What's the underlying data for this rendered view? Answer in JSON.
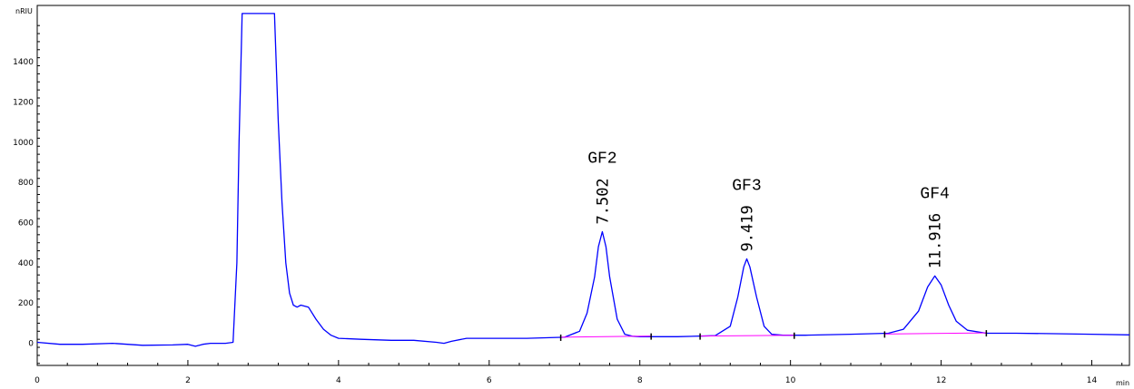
{
  "chart_data": {
    "type": "line",
    "title": "",
    "xlabel": "min",
    "ylabel": "nRIU",
    "xlim": [
      0,
      14.5
    ],
    "ylim": [
      -110,
      1680
    ],
    "x_ticks": [
      0,
      2,
      4,
      6,
      8,
      10,
      12,
      14
    ],
    "y_ticks": [
      0,
      200,
      400,
      600,
      800,
      1000,
      1200,
      1400
    ],
    "series": [
      {
        "color": "#0000ff",
        "x": [
          0,
          0.3,
          0.6,
          1.0,
          1.4,
          1.8,
          2.0,
          2.1,
          2.2,
          2.3,
          2.5,
          2.6,
          2.65,
          2.68,
          2.72,
          2.8,
          2.9,
          3.0,
          3.05,
          3.1,
          3.15,
          3.2,
          3.25,
          3.3,
          3.35,
          3.4,
          3.45,
          3.5,
          3.6,
          3.7,
          3.8,
          3.9,
          4.0,
          4.3,
          4.7,
          5.0,
          5.3,
          5.4,
          5.5,
          5.7,
          6.0,
          6.5,
          7.0,
          7.2,
          7.3,
          7.4,
          7.45,
          7.502,
          7.55,
          7.6,
          7.7,
          7.8,
          7.9,
          8.0,
          8.5,
          9.0,
          9.2,
          9.3,
          9.38,
          9.419,
          9.46,
          9.55,
          9.65,
          9.75,
          9.9,
          10.2,
          10.8,
          11.3,
          11.5,
          11.7,
          11.82,
          11.916,
          12.0,
          12.1,
          12.2,
          12.35,
          12.6,
          13.0,
          13.5,
          14.0,
          14.5
        ],
        "values": [
          5,
          -5,
          -5,
          0,
          -10,
          -8,
          -5,
          -15,
          -5,
          0,
          0,
          5,
          400,
          1000,
          1640,
          1640,
          1640,
          1640,
          1640,
          1640,
          1640,
          1100,
          700,
          400,
          250,
          190,
          180,
          190,
          180,
          120,
          70,
          40,
          25,
          20,
          15,
          15,
          5,
          0,
          10,
          25,
          25,
          25,
          30,
          60,
          150,
          330,
          480,
          555,
          480,
          330,
          120,
          45,
          35,
          33,
          33,
          38,
          85,
          230,
          380,
          420,
          380,
          230,
          85,
          45,
          40,
          40,
          45,
          50,
          70,
          160,
          280,
          335,
          290,
          190,
          110,
          65,
          50,
          50,
          48,
          45,
          42
        ]
      },
      {
        "color": "#ff00ff",
        "x": [
          6.95,
          8.15
        ],
        "values": [
          30,
          36
        ]
      },
      {
        "color": "#ff00ff",
        "x": [
          8.8,
          10.05
        ],
        "values": [
          36,
          40
        ]
      },
      {
        "color": "#ff00ff",
        "x": [
          11.25,
          12.6
        ],
        "values": [
          46,
          52
        ]
      }
    ],
    "baseline_marks": [
      {
        "x": 6.95,
        "y": 30
      },
      {
        "x": 8.15,
        "y": 36
      },
      {
        "x": 8.8,
        "y": 36
      },
      {
        "x": 10.05,
        "y": 40
      },
      {
        "x": 11.25,
        "y": 46
      },
      {
        "x": 12.6,
        "y": 52
      }
    ],
    "peaks": [
      {
        "name": "GF2",
        "rt": "7.502",
        "x": 7.502,
        "y": 555
      },
      {
        "name": "GF3",
        "rt": "9.419",
        "x": 9.419,
        "y": 420
      },
      {
        "name": "GF4",
        "rt": "11.916",
        "x": 11.916,
        "y": 335
      }
    ],
    "grid": false
  }
}
